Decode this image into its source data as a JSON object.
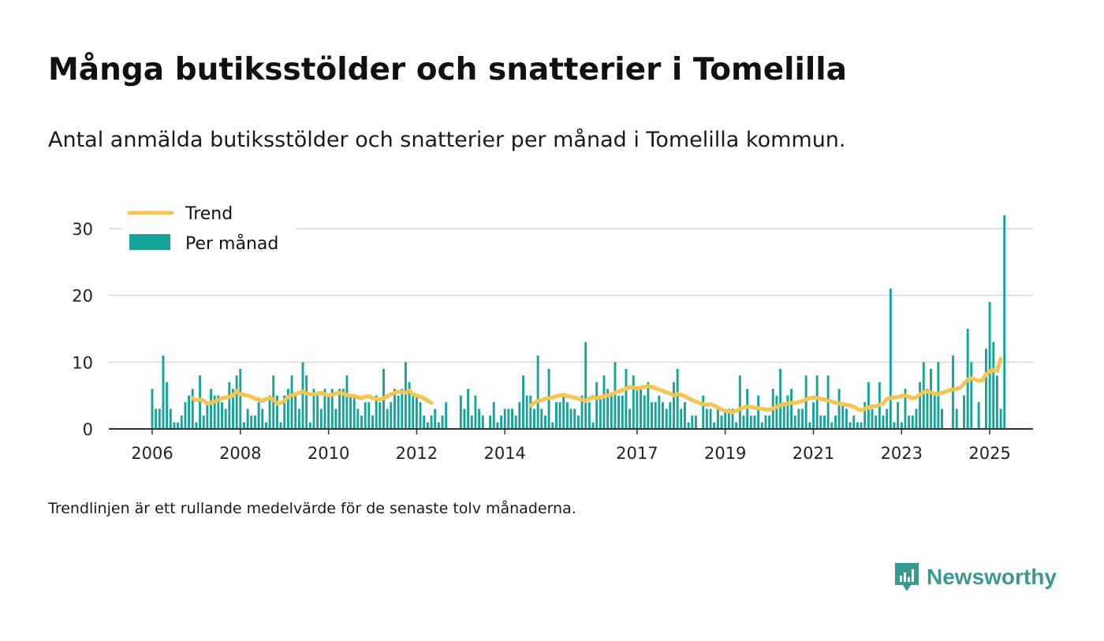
{
  "header": {
    "title": "Många butiksstölder och snatterier i Tomelilla",
    "subtitle": "Antal anmälda butiksstölder och snatterier per månad i Tomelilla kommun."
  },
  "footer": {
    "note": "Trendlinjen är ett rullande medelvärde för de senaste tolv månaderna.",
    "brand": "Newsworthy"
  },
  "colors": {
    "bars": "#16a39a",
    "trend": "#f5c451",
    "grid": "#d8d8d8",
    "axis": "#333333",
    "brand": "#3a9a92"
  },
  "chart_data": {
    "type": "bar",
    "start": "2006-01",
    "end": "2025-01",
    "ylim": [
      0,
      32
    ],
    "yticks": [
      0,
      10,
      20,
      30
    ],
    "xticks": [
      {
        "label": "2006",
        "year": 2006
      },
      {
        "label": "2008",
        "year": 2008
      },
      {
        "label": "2010",
        "year": 2010
      },
      {
        "label": "2012",
        "year": 2012
      },
      {
        "label": "2014",
        "year": 2014
      },
      {
        "label": "2017",
        "year": 2017
      },
      {
        "label": "2019",
        "year": 2019
      },
      {
        "label": "2021",
        "year": 2021
      },
      {
        "label": "2023",
        "year": 2023
      },
      {
        "label": "2025",
        "year": 2025
      }
    ],
    "legend": {
      "placement": "top-left",
      "trend_label": "Trend",
      "bars_label": "Per månad"
    },
    "series": [
      {
        "name": "Per månad",
        "kind": "bar",
        "values": [
          6,
          3,
          3,
          11,
          7,
          3,
          1,
          1,
          2,
          4,
          5,
          6,
          1,
          8,
          2,
          4,
          6,
          5,
          5,
          4,
          3,
          7,
          6,
          8,
          9,
          1,
          3,
          2,
          2,
          4,
          3,
          1,
          5,
          8,
          5,
          1,
          5,
          6,
          8,
          5,
          3,
          10,
          8,
          1,
          6,
          5,
          3,
          6,
          5,
          6,
          3,
          6,
          6,
          8,
          5,
          5,
          3,
          2,
          4,
          4,
          2,
          5,
          4,
          9,
          3,
          4,
          6,
          5,
          6,
          10,
          7,
          5,
          5,
          4,
          2,
          1,
          2,
          3,
          1,
          2,
          4,
          null,
          null,
          null,
          5,
          3,
          6,
          2,
          5,
          3,
          2,
          null,
          2,
          4,
          1,
          2,
          3,
          3,
          3,
          2,
          4,
          8,
          5,
          5,
          3,
          11,
          3,
          2,
          9,
          1,
          4,
          4,
          5,
          4,
          3,
          3,
          2,
          5,
          13,
          4,
          1,
          7,
          5,
          8,
          6,
          5,
          10,
          5,
          5,
          9,
          3,
          8,
          6,
          6,
          5,
          7,
          4,
          4,
          5,
          4,
          3,
          4,
          7,
          9,
          3,
          4,
          1,
          2,
          2,
          null,
          5,
          3,
          3,
          1,
          3,
          2,
          3,
          3,
          3,
          1,
          8,
          2,
          6,
          2,
          2,
          5,
          1,
          2,
          2,
          6,
          5,
          9,
          4,
          5,
          6,
          2,
          3,
          3,
          8,
          1,
          4,
          8,
          2,
          2,
          8,
          1,
          2,
          6,
          4,
          3,
          1,
          2,
          1,
          1,
          4,
          7,
          3,
          2,
          7,
          2,
          3,
          21,
          1,
          4,
          1,
          6,
          2,
          2,
          3,
          7,
          10,
          6,
          9,
          5,
          10,
          3,
          null,
          null,
          11,
          3,
          null,
          5,
          15,
          10,
          null,
          4,
          null,
          12,
          19,
          13,
          8,
          3,
          32
        ]
      },
      {
        "name": "Trend",
        "kind": "line",
        "start": "2006-12",
        "values": [
          4.6,
          4.3,
          4.4,
          4.2,
          3.8,
          3.9,
          4.1,
          4.3,
          4.6,
          4.7,
          4.8,
          5.0,
          5.7,
          5.2,
          5.1,
          5.0,
          4.8,
          4.5,
          4.4,
          4.2,
          4.5,
          4.6,
          4.4,
          3.8,
          3.9,
          4.2,
          4.8,
          5.0,
          5.2,
          5.4,
          5.6,
          5.3,
          5.2,
          5.2,
          5.3,
          5.4,
          5.2,
          5.0,
          5.1,
          5.3,
          5.4,
          5.3,
          5.1,
          5.0,
          4.9,
          4.7,
          4.6,
          4.8,
          4.9,
          4.6,
          4.5,
          4.4,
          4.6,
          4.9,
          5.2,
          5.4,
          5.6,
          5.5,
          5.4,
          5.7,
          5.2,
          5.0,
          4.8,
          4.6,
          4.2,
          3.9,
          null,
          null,
          null,
          null,
          null,
          null,
          null,
          null,
          null,
          null,
          null,
          null,
          null,
          null,
          null,
          null,
          null,
          null,
          null,
          null,
          null,
          null,
          null,
          null,
          null,
          null,
          3.5,
          3.9,
          4.2,
          4.3,
          4.5,
          4.6,
          4.7,
          4.9,
          5.0,
          5.1,
          4.9,
          4.8,
          4.7,
          4.5,
          4.4,
          4.2,
          4.5,
          4.8,
          4.6,
          4.7,
          4.9,
          5.0,
          5.2,
          5.4,
          5.6,
          5.8,
          6.0,
          6.3,
          6.2,
          6.0,
          6.2,
          6.3,
          6.4,
          6.3,
          6.1,
          5.9,
          5.7,
          5.5,
          5.3,
          5.0,
          5.2,
          5.1,
          4.9,
          4.6,
          4.3,
          4.1,
          3.9,
          3.7,
          3.6,
          3.7,
          3.5,
          3.2,
          2.9,
          2.7,
          2.6,
          2.5,
          2.7,
          3.0,
          3.2,
          3.3,
          3.3,
          3.2,
          3.1,
          3.0,
          2.9,
          2.9,
          3.1,
          3.3,
          3.5,
          3.7,
          3.8,
          3.9,
          3.9,
          4.0,
          4.2,
          4.4,
          4.6,
          4.7,
          4.6,
          4.5,
          4.4,
          4.2,
          4.1,
          3.9,
          3.8,
          3.7,
          3.6,
          3.5,
          3.3,
          3.0,
          2.8,
          3.0,
          3.2,
          3.4,
          3.4,
          3.6,
          3.8,
          4.5,
          4.6,
          4.7,
          4.8,
          4.9,
          5.0,
          4.8,
          4.6,
          4.7,
          5.2,
          5.5,
          5.6,
          5.5,
          5.3,
          5.2,
          5.4,
          5.6,
          5.8,
          5.9,
          6.0,
          6.2,
          6.8,
          7.4,
          7.6,
          7.4,
          7.2,
          7.3,
          8.2,
          8.6,
          8.8,
          8.7,
          10.5
        ]
      }
    ]
  }
}
